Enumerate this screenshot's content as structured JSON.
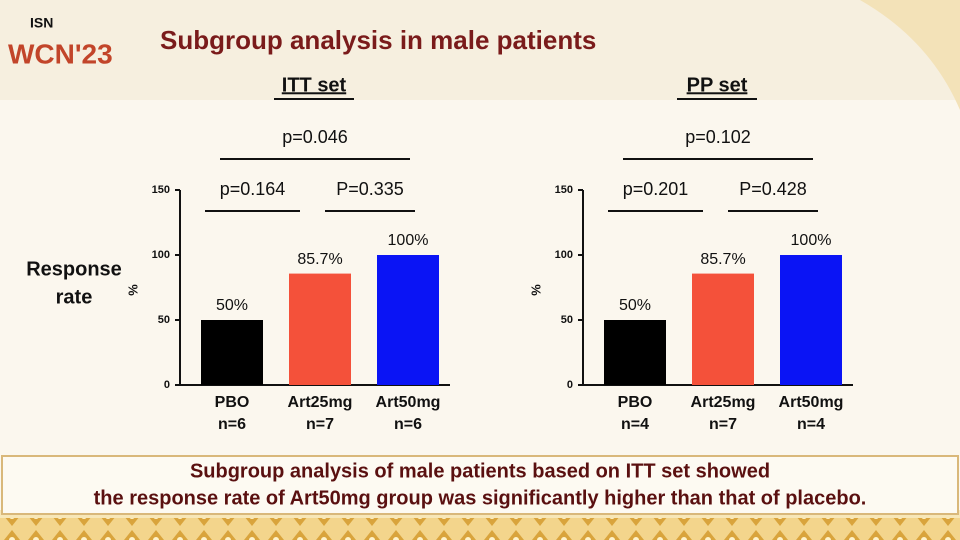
{
  "header": {
    "logo_top": "ISN",
    "logo": "WCN'23",
    "title": "Subgroup analysis in male patients"
  },
  "side_label": [
    "Response",
    "rate"
  ],
  "chart_data": [
    {
      "type": "bar",
      "title": "ITT set",
      "y_label": "%",
      "categories": [
        "PBO",
        "Art25mg",
        "Art50mg"
      ],
      "category_notes": [
        "n=6",
        "n=7",
        "n=6"
      ],
      "values": [
        50,
        85.7,
        100
      ],
      "value_labels": [
        "50%",
        "85.7%",
        "100%"
      ],
      "colors": [
        "#000000",
        "#f4513a",
        "#0a14f5"
      ],
      "ylim": [
        0,
        150
      ],
      "yticks": [
        0,
        50,
        100,
        150
      ],
      "comparisons": [
        "p=0.164",
        "P=0.335",
        "p=0.046"
      ]
    },
    {
      "type": "bar",
      "title": "PP set",
      "y_label": "%",
      "categories": [
        "PBO",
        "Art25mg",
        "Art50mg"
      ],
      "category_notes": [
        "n=4",
        "n=7",
        "n=4"
      ],
      "values": [
        50,
        85.7,
        100
      ],
      "value_labels": [
        "50%",
        "85.7%",
        "100%"
      ],
      "colors": [
        "#000000",
        "#f4513a",
        "#0a14f5"
      ],
      "ylim": [
        0,
        150
      ],
      "yticks": [
        0,
        50,
        100,
        150
      ],
      "comparisons": [
        "p=0.201",
        "P=0.428",
        "p=0.102"
      ]
    }
  ],
  "conclusion": [
    "Subgroup analysis of male patients based on ITT set showed",
    "the response rate of Art50mg group was significantly higher than that of placebo."
  ]
}
